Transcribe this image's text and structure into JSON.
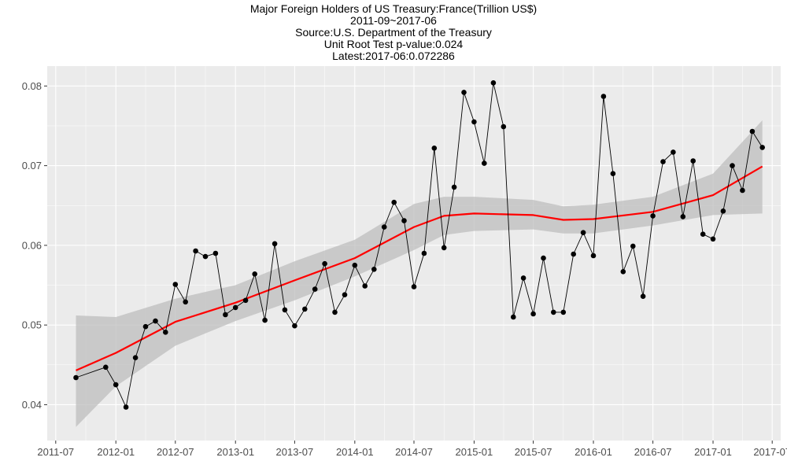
{
  "chart_data": {
    "type": "line",
    "title_lines": [
      "Major Foreign Holders of US Treasury:France(Trillion US$)",
      "2011-09~2017-06",
      "Source:U.S. Department of the Treasury",
      "Unit Root Test p-value:0.024",
      "Latest:2017-06:0.072286"
    ],
    "xlabel": "",
    "ylabel": "",
    "x_ticks": [
      "2011-07",
      "2012-01",
      "2012-07",
      "2013-01",
      "2013-07",
      "2014-01",
      "2014-07",
      "2015-01",
      "2015-07",
      "2016-01",
      "2016-07",
      "2017-01",
      "2017-07"
    ],
    "y_ticks": [
      "0.04",
      "0.05",
      "0.06",
      "0.07",
      "0.08"
    ],
    "ylim": [
      0.0355,
      0.0825
    ],
    "xlim": [
      "2011-06-05",
      "2017-07-27"
    ],
    "grid": true,
    "colors": {
      "panel": "#ebebeb",
      "grid": "#ffffff",
      "line": "#000000",
      "point": "#000000",
      "smooth": "#ff0000",
      "band": "#bdbdbd"
    },
    "series": [
      {
        "type": "observed",
        "x": [
          "2011-09-01",
          "2011-12-01",
          "2012-01-01",
          "2012-02-01",
          "2012-03-01",
          "2012-04-01",
          "2012-05-01",
          "2012-06-01",
          "2012-07-01",
          "2012-08-01",
          "2012-09-01",
          "2012-10-01",
          "2012-11-01",
          "2012-12-01",
          "2013-01-01",
          "2013-02-01",
          "2013-03-01",
          "2013-04-01",
          "2013-05-01",
          "2013-06-01",
          "2013-07-01",
          "2013-08-01",
          "2013-09-01",
          "2013-10-01",
          "2013-11-01",
          "2013-12-01",
          "2014-01-01",
          "2014-02-01",
          "2014-03-01",
          "2014-04-01",
          "2014-05-01",
          "2014-06-01",
          "2014-07-01",
          "2014-08-01",
          "2014-09-01",
          "2014-10-01",
          "2014-11-01",
          "2014-12-01",
          "2015-01-01",
          "2015-02-01",
          "2015-03-01",
          "2015-04-01",
          "2015-05-01",
          "2015-06-01",
          "2015-07-01",
          "2015-08-01",
          "2015-09-01",
          "2015-10-01",
          "2015-11-01",
          "2015-12-01",
          "2016-01-01",
          "2016-02-01",
          "2016-03-01",
          "2016-04-01",
          "2016-05-01",
          "2016-06-01",
          "2016-07-01",
          "2016-08-01",
          "2016-09-01",
          "2016-10-01",
          "2016-11-01",
          "2016-12-01",
          "2017-01-01",
          "2017-02-01",
          "2017-03-01",
          "2017-04-01",
          "2017-05-01",
          "2017-06-01"
        ],
        "y": [
          0.0434,
          0.0447,
          0.0425,
          0.0397,
          0.0459,
          0.0498,
          0.0505,
          0.0491,
          0.0551,
          0.0529,
          0.0593,
          0.0586,
          0.059,
          0.0513,
          0.0522,
          0.0531,
          0.0564,
          0.0506,
          0.0602,
          0.0519,
          0.0499,
          0.052,
          0.0545,
          0.0577,
          0.0516,
          0.0538,
          0.0575,
          0.0549,
          0.057,
          0.0623,
          0.0654,
          0.0631,
          0.0548,
          0.059,
          0.0722,
          0.0597,
          0.0673,
          0.0792,
          0.0755,
          0.0703,
          0.0804,
          0.0749,
          0.051,
          0.0559,
          0.0514,
          0.0584,
          0.0516,
          0.0516,
          0.0589,
          0.0616,
          0.0587,
          0.0787,
          0.069,
          0.0567,
          0.0599,
          0.0536,
          0.0637,
          0.0705,
          0.0717,
          0.0636,
          0.0706,
          0.0614,
          0.0608,
          0.0643,
          0.07,
          0.0669,
          0.0743,
          0.072286
        ]
      },
      {
        "type": "smooth",
        "x": [
          "2011-09-01",
          "2012-01-01",
          "2012-07-01",
          "2013-01-01",
          "2013-07-01",
          "2014-01-01",
          "2014-07-01",
          "2014-10-01",
          "2015-01-01",
          "2015-07-01",
          "2015-10-01",
          "2016-01-01",
          "2016-07-01",
          "2017-01-01",
          "2017-06-01"
        ],
        "y": [
          0.0443,
          0.0465,
          0.0504,
          0.0528,
          0.0556,
          0.0584,
          0.0623,
          0.0637,
          0.064,
          0.0638,
          0.0632,
          0.0633,
          0.0642,
          0.0663,
          0.0699
        ],
        "lower": [
          0.0372,
          0.0423,
          0.0474,
          0.0505,
          0.0531,
          0.0561,
          0.0594,
          0.0613,
          0.0618,
          0.062,
          0.0615,
          0.0615,
          0.0625,
          0.0638,
          0.064
        ],
        "upper": [
          0.0512,
          0.051,
          0.0533,
          0.055,
          0.058,
          0.0607,
          0.0652,
          0.0661,
          0.0661,
          0.0657,
          0.0649,
          0.0651,
          0.0661,
          0.069,
          0.0757
        ]
      }
    ]
  }
}
